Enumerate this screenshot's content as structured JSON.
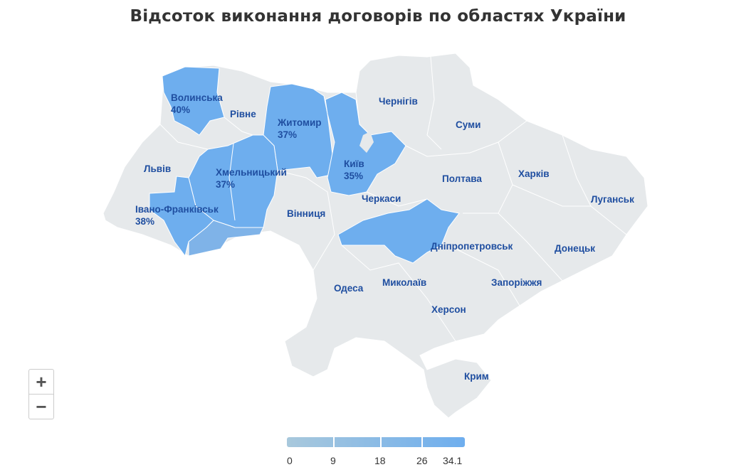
{
  "title": "Відсоток виконання договорів по областях України",
  "colors": {
    "highlight": "#6eaeee",
    "chernivtsi": "#7fb3e8",
    "base": "#e6e9eb",
    "label": "#1f4ea0"
  },
  "regions": [
    {
      "name": "Волинська",
      "value": "40%"
    },
    {
      "name": "Рівне"
    },
    {
      "name": "Житомир",
      "value": "37%"
    },
    {
      "name": "Київ",
      "value": "35%"
    },
    {
      "name": "Чернігів"
    },
    {
      "name": "Суми"
    },
    {
      "name": "Львів"
    },
    {
      "name": "Хмельницький",
      "value": "37%"
    },
    {
      "name": "Полтава"
    },
    {
      "name": "Харків"
    },
    {
      "name": "Луганськ"
    },
    {
      "name": "Черкаси"
    },
    {
      "name": "Івано-Франківськ",
      "value": "38%"
    },
    {
      "name": "Вінниця"
    },
    {
      "name": "Дніпропетровськ"
    },
    {
      "name": "Донецьк"
    },
    {
      "name": "Одеса"
    },
    {
      "name": "Миколаїв"
    },
    {
      "name": "Запоріжжя"
    },
    {
      "name": "Херсон"
    },
    {
      "name": "Крим"
    }
  ],
  "zoom": {
    "in": "+",
    "out": "−"
  },
  "legend": {
    "ticks": [
      "0",
      "9",
      "18",
      "26",
      "34.1"
    ],
    "min": 0,
    "max": 34.1,
    "color_from": "#a8c8dc",
    "color_to": "#6eaeee"
  }
}
